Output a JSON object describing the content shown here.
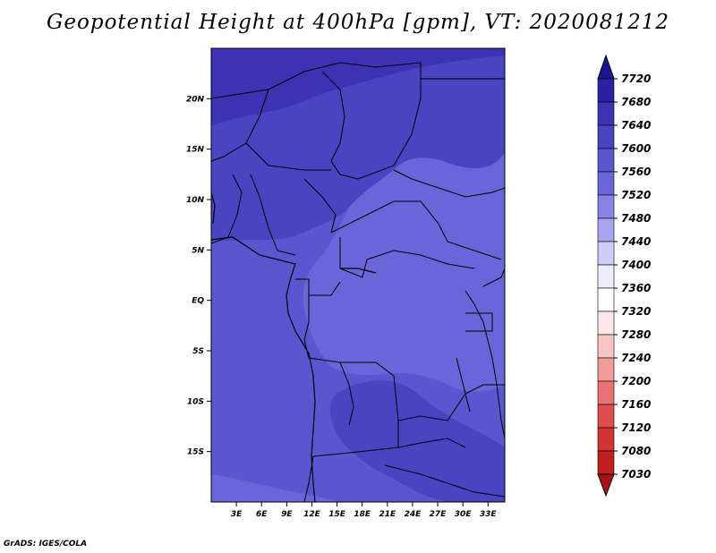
{
  "title": "Geopotential Height at 400hPa [gpm], VT: 2020081212",
  "credit": "GrADS: IGES/COLA",
  "map": {
    "lon_range": [
      0,
      35
    ],
    "lat_range": [
      -20,
      25
    ],
    "x_ticks": [
      "3E",
      "6E",
      "9E",
      "12E",
      "15E",
      "18E",
      "21E",
      "24E",
      "27E",
      "30E",
      "33E"
    ],
    "x_tick_values": [
      3,
      6,
      9,
      12,
      15,
      18,
      21,
      24,
      27,
      30,
      33
    ],
    "y_ticks": [
      "20N",
      "15N",
      "10N",
      "5N",
      "EQ",
      "5S",
      "10S",
      "15S"
    ],
    "y_tick_values": [
      20,
      15,
      10,
      5,
      0,
      -5,
      -10,
      -15
    ]
  },
  "colorbar": {
    "labels": [
      "7720",
      "7680",
      "7640",
      "7600",
      "7560",
      "7520",
      "7480",
      "7440",
      "7400",
      "7360",
      "7320",
      "7280",
      "7240",
      "7200",
      "7160",
      "7120",
      "7080",
      "7030"
    ],
    "colors": [
      "#1e1490",
      "#2a20a2",
      "#3b33b4",
      "#4a43c2",
      "#5b55cf",
      "#6a66da",
      "#8884e6",
      "#a9a6f0",
      "#cfcdf7",
      "#eeedfc",
      "#ffffff",
      "#fde7e7",
      "#f9c4c4",
      "#f29c9c",
      "#e97272",
      "#de4d4d",
      "#d03434",
      "#c01f1f",
      "#a81414"
    ]
  }
}
